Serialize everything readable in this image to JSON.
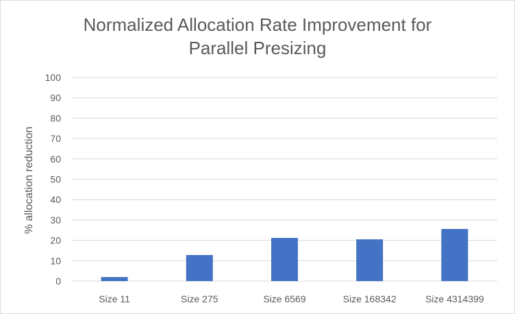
{
  "chart_data": {
    "type": "bar",
    "title": "Normalized Allocation Rate Improvement for Parallel Presizing",
    "title_lines": [
      "Normalized Allocation Rate Improvement for",
      "Parallel Presizing"
    ],
    "xlabel": "",
    "ylabel": "% allocation reduction",
    "categories": [
      "Size 11",
      "Size 275",
      "Size 6569",
      "Size 168342",
      "Size 4314399"
    ],
    "values": [
      2,
      12.8,
      21.2,
      20.5,
      25.6
    ],
    "ylim": [
      0,
      100
    ],
    "yticks": [
      0,
      10,
      20,
      30,
      40,
      50,
      60,
      70,
      80,
      90,
      100
    ],
    "grid": true,
    "legend": "none",
    "bar_color": "#4472C4",
    "grid_color": "#d9d9d9",
    "text_color": "#595959"
  }
}
